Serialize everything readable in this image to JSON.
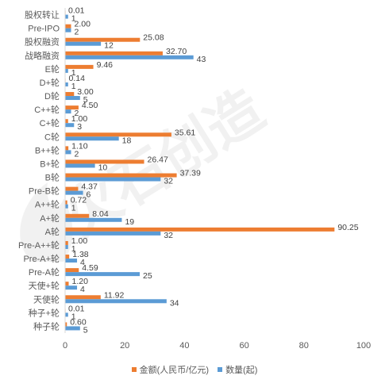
{
  "chart_data": {
    "type": "bar",
    "orientation": "horizontal",
    "categories": [
      "股权转让",
      "Pre-IPO",
      "股权融资",
      "战略融资",
      "E轮",
      "D+轮",
      "D轮",
      "C++轮",
      "C+轮",
      "C轮",
      "B++轮",
      "B+轮",
      "B轮",
      "Pre-B轮",
      "A++轮",
      "A+轮",
      "A轮",
      "Pre-A++轮",
      "Pre-A+轮",
      "Pre-A轮",
      "天使+轮",
      "天使轮",
      "种子+轮",
      "种子轮"
    ],
    "series": [
      {
        "name": "金额(人民币/亿元)",
        "color": "#ED7D31",
        "labels": [
          "0.01",
          "2.00",
          "25.08",
          "32.70",
          "9.46",
          "0.14",
          "3.00",
          "4.50",
          "1.00",
          "35.61",
          "1.10",
          "26.47",
          "37.39",
          "4.37",
          "0.72",
          "8.04",
          "90.25",
          "1.00",
          "1.38",
          "4.59",
          "1.20",
          "11.92",
          "0.01",
          "0.60"
        ],
        "values": [
          0.01,
          2.0,
          25.08,
          32.7,
          9.46,
          0.14,
          3.0,
          4.5,
          1.0,
          35.61,
          1.1,
          26.47,
          37.39,
          4.37,
          0.72,
          8.04,
          90.25,
          1.0,
          1.38,
          4.59,
          1.2,
          11.92,
          0.01,
          0.6
        ]
      },
      {
        "name": "数量(起)",
        "color": "#5B9BD5",
        "labels": [
          "1",
          "2",
          "12",
          "43",
          "1",
          "1",
          "5",
          "2",
          "3",
          "18",
          "2",
          "10",
          "32",
          "6",
          "1",
          "19",
          "32",
          "1",
          "4",
          "25",
          "4",
          "34",
          "1",
          "5"
        ],
        "values": [
          1,
          2,
          12,
          43,
          1,
          1,
          5,
          2,
          3,
          18,
          2,
          10,
          32,
          6,
          1,
          19,
          32,
          1,
          4,
          25,
          4,
          34,
          1,
          5
        ]
      }
    ],
    "x_ticks": [
      "0",
      "20",
      "40",
      "60",
      "80",
      "100"
    ],
    "xlim": [
      0,
      100
    ],
    "grid": false,
    "legend_position": "bottom"
  },
  "watermark": {
    "text": "火石创造"
  }
}
